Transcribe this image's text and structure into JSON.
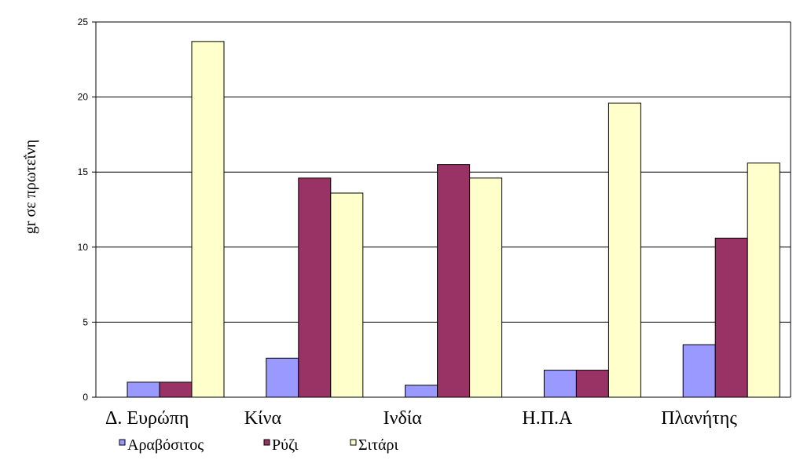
{
  "chart_data": {
    "type": "bar",
    "categories": [
      "Δ. Ευρώπη",
      "Κίνα",
      "Ινδία",
      "Η.Π.Α",
      "Πλανήτης"
    ],
    "series": [
      {
        "name": "Αραβόσιτος",
        "values": [
          1.0,
          2.6,
          0.8,
          1.8,
          3.5
        ],
        "color": "#9999ff"
      },
      {
        "name": "Ρύζι",
        "values": [
          1.0,
          14.6,
          15.5,
          1.8,
          10.6
        ],
        "color": "#993366"
      },
      {
        "name": "Σιτάρι",
        "values": [
          23.7,
          13.6,
          14.6,
          19.6,
          15.6
        ],
        "color": "#ffffcc"
      }
    ],
    "ylabel": "gr σε πρωτεΐνη",
    "ylim": [
      0,
      25
    ],
    "yticks": [
      0,
      5,
      10,
      15,
      20,
      25
    ],
    "grid": true,
    "legend_position": "bottom"
  }
}
